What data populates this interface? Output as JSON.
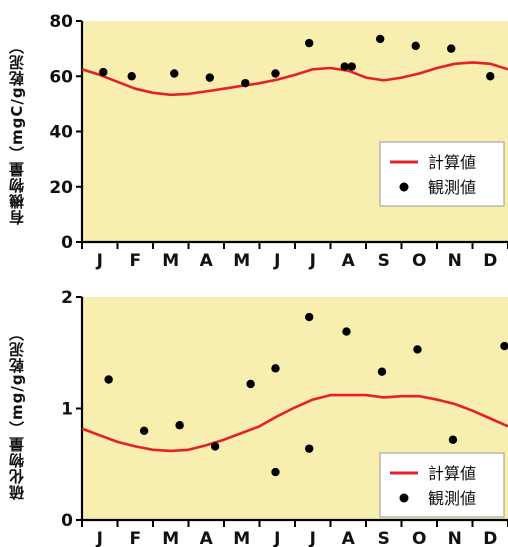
{
  "chart_data": [
    {
      "type": "line",
      "ylabel": "有機物量（mgC/g乾泥）",
      "ylim": [
        0,
        80
      ],
      "yticks": [
        0,
        20,
        40,
        60,
        80
      ],
      "months": [
        "J",
        "F",
        "M",
        "A",
        "M",
        "J",
        "J",
        "A",
        "S",
        "O",
        "N",
        "D"
      ],
      "xlim": [
        0,
        12
      ],
      "legend": {
        "placement": "bottom-right",
        "entries": [
          "計算値",
          "観測値"
        ]
      },
      "series": [
        {
          "name": "計算値",
          "type": "line",
          "color": "#e4202a",
          "x": [
            0,
            0.5,
            1,
            1.5,
            2,
            2.5,
            3,
            3.5,
            4,
            4.5,
            5,
            5.5,
            6,
            6.5,
            7,
            7.5,
            8,
            8.5,
            9,
            9.5,
            10,
            10.5,
            11,
            11.5,
            12
          ],
          "y": [
            62.5,
            60.5,
            58.0,
            55.5,
            54.0,
            53.3,
            53.6,
            54.5,
            55.5,
            56.5,
            57.5,
            58.8,
            60.5,
            62.5,
            63.0,
            62.0,
            59.5,
            58.5,
            59.5,
            61.0,
            63.0,
            64.5,
            65.0,
            64.5,
            62.5
          ]
        },
        {
          "name": "観測値",
          "type": "scatter",
          "color": "#000000",
          "x": [
            0.6,
            1.4,
            2.6,
            3.6,
            4.6,
            5.45,
            6.4,
            7.4,
            7.6,
            8.4,
            9.4,
            10.4,
            11.5
          ],
          "y": [
            61.5,
            60.0,
            61.0,
            59.5,
            57.5,
            61.0,
            72.0,
            63.5,
            63.5,
            73.5,
            71.0,
            70.0,
            60.0
          ]
        }
      ]
    },
    {
      "type": "line",
      "ylabel": "硫化物量（mg/g乾泥）",
      "ylim": [
        0,
        2
      ],
      "yticks": [
        0,
        1,
        2
      ],
      "months": [
        "J",
        "F",
        "M",
        "A",
        "M",
        "J",
        "J",
        "A",
        "S",
        "O",
        "N",
        "D"
      ],
      "xlim": [
        0,
        12
      ],
      "legend": {
        "placement": "bottom-right",
        "entries": [
          "計算値",
          "観測値"
        ]
      },
      "series": [
        {
          "name": "計算値",
          "type": "line",
          "color": "#e4202a",
          "x": [
            0,
            0.5,
            1,
            1.5,
            2,
            2.5,
            3,
            3.5,
            4,
            4.5,
            5,
            5.5,
            6,
            6.5,
            7,
            7.5,
            8,
            8.5,
            9,
            9.5,
            10,
            10.5,
            11,
            11.5,
            12
          ],
          "y": [
            0.82,
            0.76,
            0.7,
            0.66,
            0.63,
            0.62,
            0.63,
            0.67,
            0.72,
            0.78,
            0.84,
            0.93,
            1.01,
            1.08,
            1.12,
            1.12,
            1.12,
            1.1,
            1.11,
            1.11,
            1.08,
            1.04,
            0.98,
            0.91,
            0.84
          ]
        },
        {
          "name": "観測値",
          "type": "scatter",
          "color": "#000000",
          "x": [
            0.75,
            1.75,
            2.75,
            3.75,
            4.75,
            5.45,
            5.45,
            6.4,
            6.4,
            7.45,
            8.45,
            9.45,
            10.45,
            11.9
          ],
          "y": [
            1.26,
            0.8,
            0.85,
            0.66,
            1.22,
            1.36,
            0.43,
            1.82,
            0.64,
            1.69,
            1.33,
            1.53,
            0.72,
            1.56
          ]
        }
      ]
    }
  ]
}
